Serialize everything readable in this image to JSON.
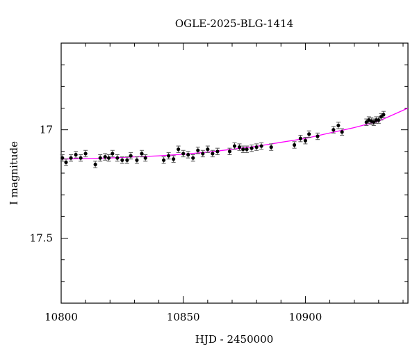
{
  "chart_data": {
    "type": "scatter",
    "title": "OGLE-2025-BLG-1414",
    "xlabel": "HJD - 2450000",
    "ylabel": "I magnitude",
    "xlim": [
      10800,
      10942
    ],
    "ylim": [
      17.8,
      16.6
    ],
    "y_inverted": true,
    "x_ticks": [
      10800,
      10850,
      10900
    ],
    "y_ticks": [
      17,
      17.5
    ],
    "grid": false,
    "colors": {
      "points": "#000000",
      "error_bars": "#555555",
      "model": "#ff00ff",
      "frame": "#000000"
    },
    "series": [
      {
        "name": "",
        "x": [
          10800.5,
          10802,
          10804,
          10806,
          10808,
          10810,
          10814,
          10816,
          10818,
          10819.5,
          10821,
          10823,
          10825,
          10827,
          10828.5,
          10831,
          10833,
          10834.5,
          10842,
          10844,
          10846,
          10848,
          10850,
          10852,
          10854,
          10856,
          10858,
          10860,
          10862,
          10864,
          10869,
          10871,
          10873,
          10874.5,
          10876,
          10878,
          10880,
          10882,
          10886,
          10895.5,
          10898,
          10900,
          10901.5,
          10905,
          10911.5,
          10913.5,
          10915,
          10925,
          10926,
          10927,
          10928,
          10929,
          10930,
          10931,
          10932
        ],
        "y": [
          17.13,
          17.15,
          17.13,
          17.115,
          17.13,
          17.11,
          17.16,
          17.13,
          17.125,
          17.13,
          17.11,
          17.13,
          17.14,
          17.14,
          17.12,
          17.14,
          17.11,
          17.13,
          17.14,
          17.12,
          17.135,
          17.09,
          17.11,
          17.115,
          17.13,
          17.095,
          17.11,
          17.09,
          17.11,
          17.1,
          17.1,
          17.075,
          17.08,
          17.09,
          17.09,
          17.085,
          17.08,
          17.075,
          17.08,
          17.07,
          17.04,
          17.05,
          17.02,
          17.03,
          17.0,
          16.98,
          17.01,
          16.965,
          16.955,
          16.96,
          16.965,
          16.955,
          16.955,
          16.94,
          16.93
        ],
        "err": [
          0.015,
          0.015,
          0.015,
          0.015,
          0.015,
          0.015,
          0.015,
          0.015,
          0.015,
          0.015,
          0.015,
          0.015,
          0.015,
          0.015,
          0.015,
          0.015,
          0.015,
          0.015,
          0.015,
          0.015,
          0.015,
          0.015,
          0.015,
          0.015,
          0.015,
          0.015,
          0.015,
          0.015,
          0.015,
          0.015,
          0.015,
          0.015,
          0.015,
          0.015,
          0.015,
          0.015,
          0.015,
          0.015,
          0.015,
          0.015,
          0.015,
          0.015,
          0.015,
          0.015,
          0.015,
          0.015,
          0.015,
          0.015,
          0.015,
          0.015,
          0.015,
          0.015,
          0.015,
          0.015,
          0.015
        ]
      }
    ],
    "model": {
      "x": [
        10800,
        10810,
        10820,
        10830,
        10840,
        10850,
        10860,
        10870,
        10880,
        10890,
        10900,
        10910,
        10920,
        10930,
        10942
      ],
      "y": [
        17.135,
        17.133,
        17.13,
        17.125,
        17.12,
        17.113,
        17.103,
        17.09,
        17.076,
        17.058,
        17.04,
        17.015,
        16.99,
        16.96,
        16.9
      ]
    }
  }
}
